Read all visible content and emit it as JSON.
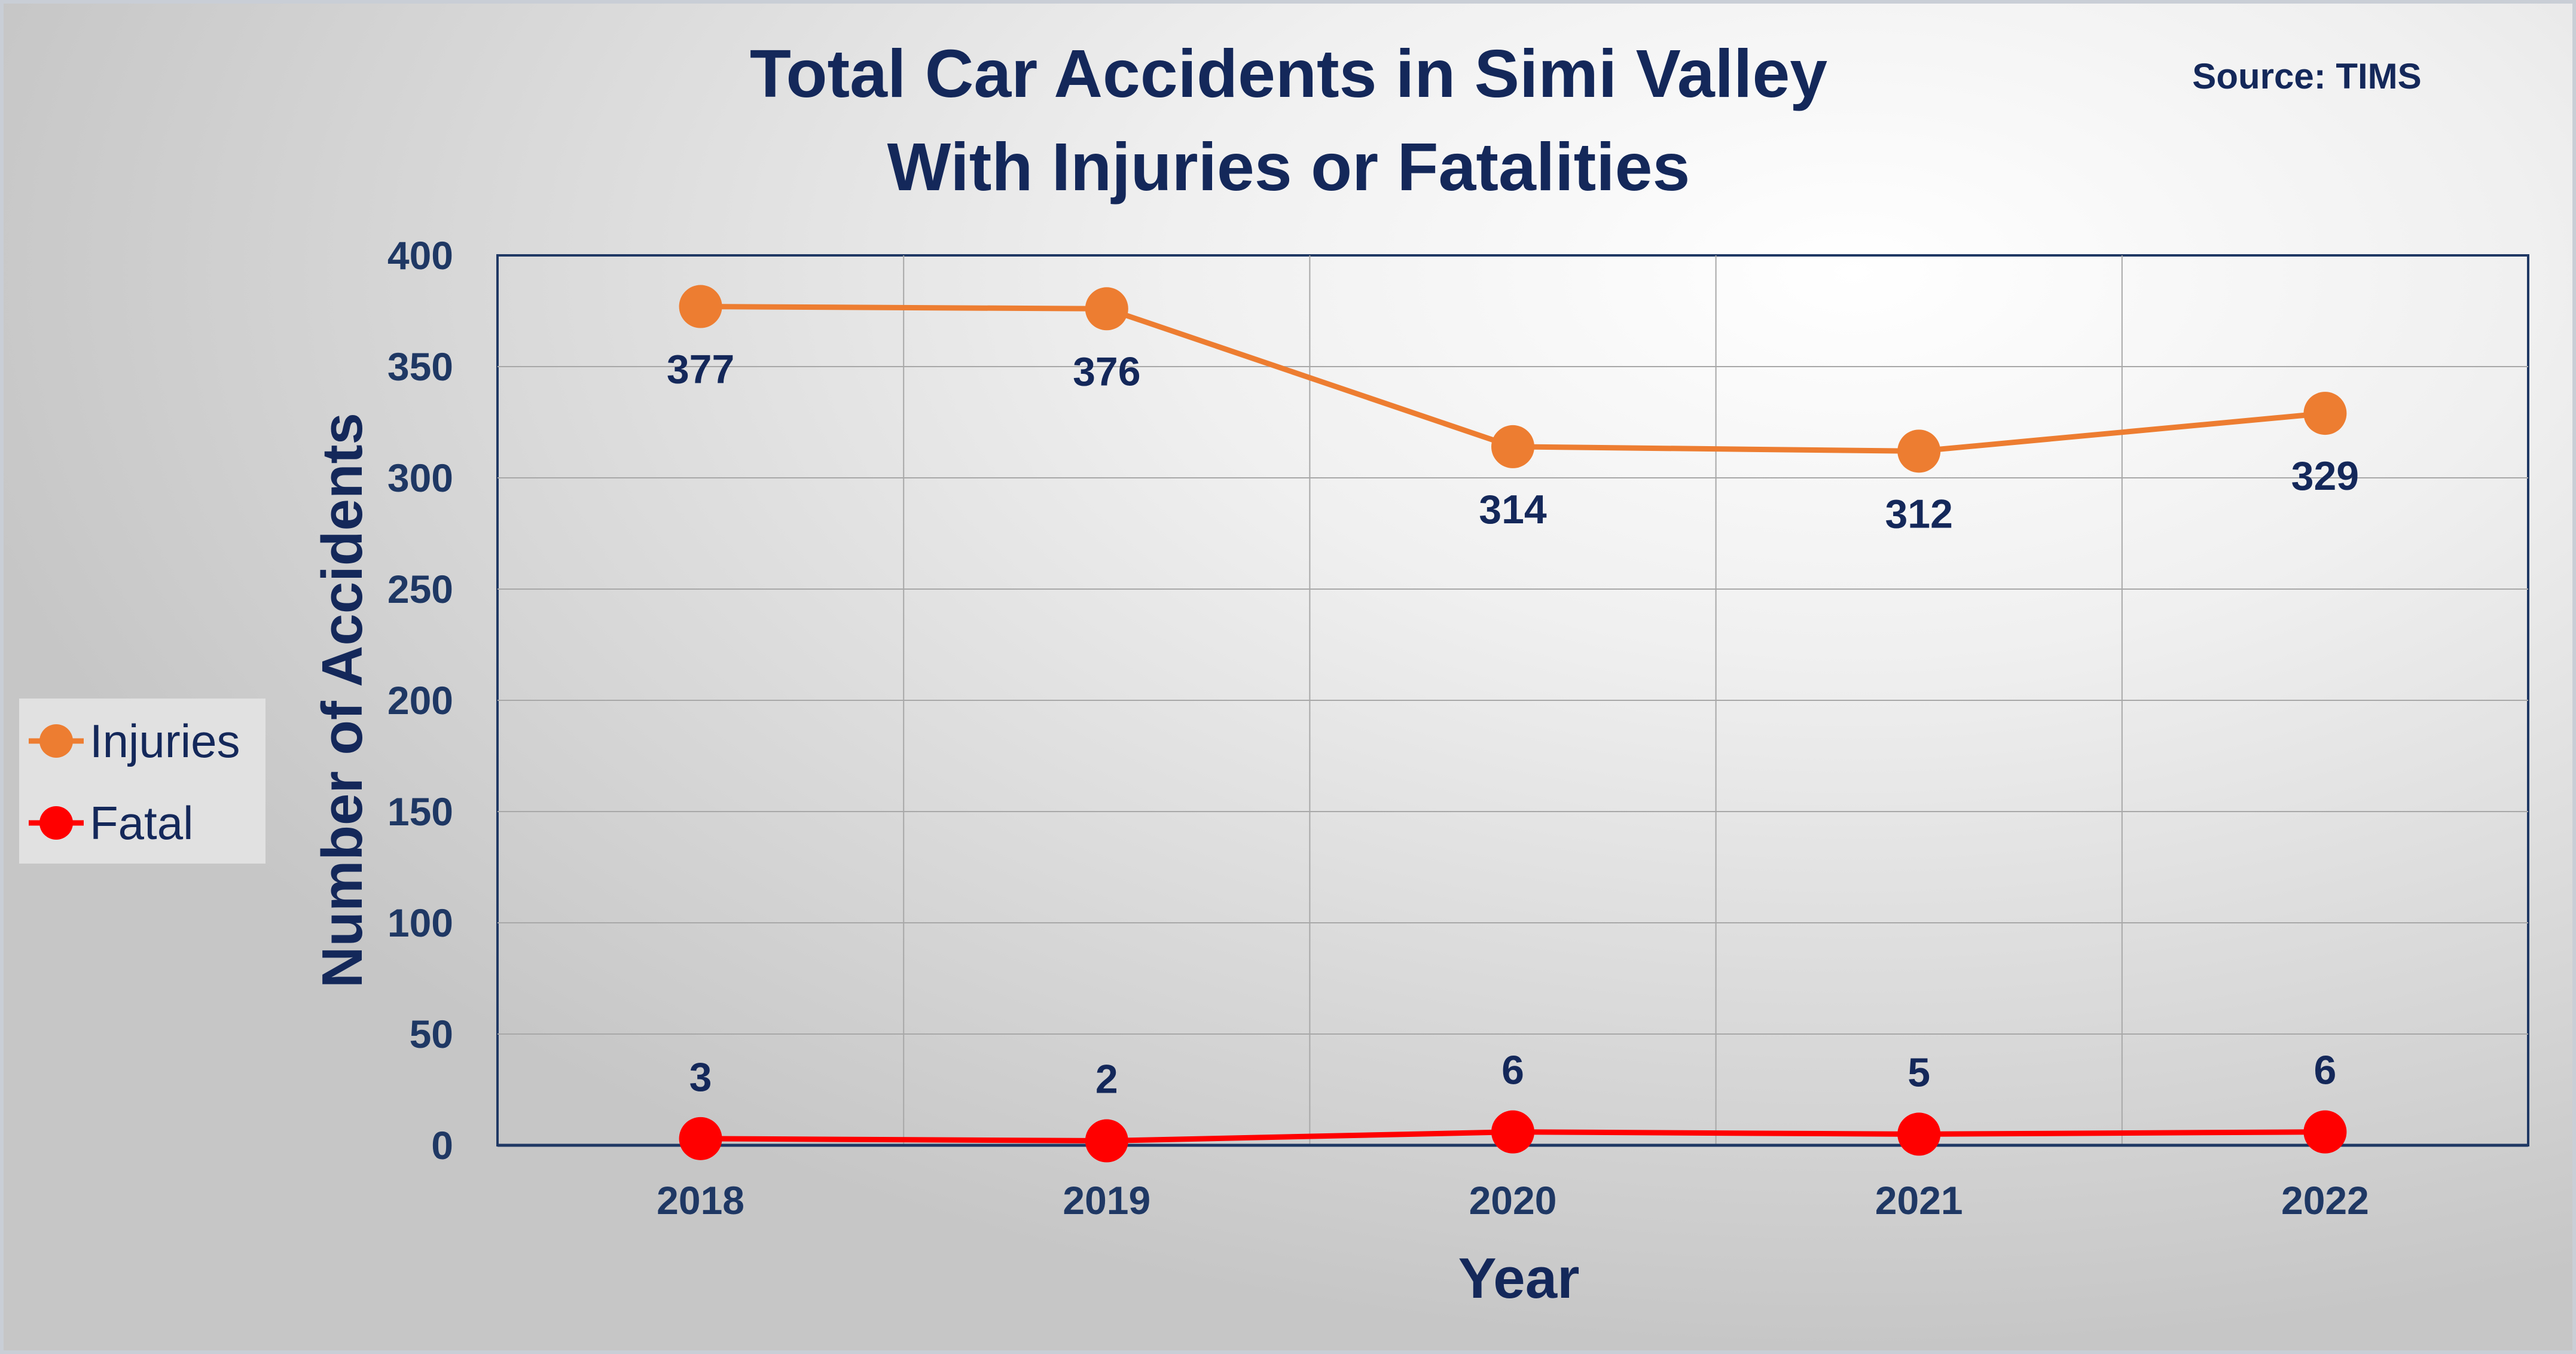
{
  "chart_data": {
    "type": "line",
    "title_lines": [
      "Total Car Accidents in Simi Valley",
      "With Injuries or Fatalities"
    ],
    "source": "Source: TIMS",
    "xlabel": "Year",
    "ylabel": "Number of Accidents",
    "categories": [
      "2018",
      "2019",
      "2020",
      "2021",
      "2022"
    ],
    "ylim": [
      0,
      400
    ],
    "yticks": [
      0,
      50,
      100,
      150,
      200,
      250,
      300,
      350,
      400
    ],
    "grid": true,
    "legend_position": "left",
    "series": [
      {
        "name": "Injuries",
        "color": "#ed7d31",
        "values": [
          377,
          376,
          314,
          312,
          329
        ],
        "label_position": "below"
      },
      {
        "name": "Fatal",
        "color": "#ff0000",
        "values": [
          3,
          2,
          6,
          5,
          6
        ],
        "label_position": "above"
      }
    ]
  }
}
